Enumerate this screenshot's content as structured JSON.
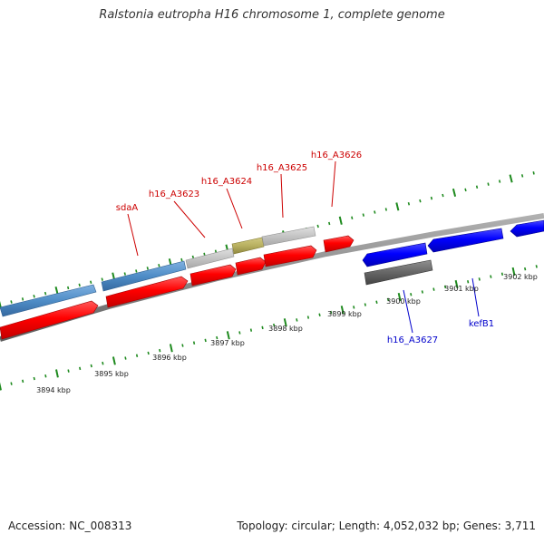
{
  "title": "Ralstonia eutropha H16 chromosome 1, complete genome",
  "footer": {
    "accession": "Accession: NC_008313",
    "summary": "Topology: circular; Length: 4,052,032 bp; Genes: 3,711"
  },
  "colors": {
    "forward_cds": "#ff0000",
    "reverse_cds": "#0000ff",
    "pseudo_or_unknown": "#c8c8c8",
    "highlight_gene": "#b8b060",
    "steel_blue_feature": "#4f8dc7",
    "dark_feature": "#666666",
    "backbone": "#8c8c8c",
    "tick": "#1e8a1e",
    "forward_label": "#cc0000",
    "reverse_label": "#0000cc",
    "kbp_label": "#222222"
  },
  "kbp_labels": [
    "3894 kbp",
    "3895 kbp",
    "3896 kbp",
    "3897 kbp",
    "3898 kbp",
    "3899 kbp",
    "3900 kbp",
    "3901 kbp",
    "3902 kbp"
  ],
  "forward_labels": [
    "sdaA",
    "h16_A3623",
    "h16_A3624",
    "h16_A3625",
    "h16_A3626"
  ],
  "reverse_labels": [
    "h16_A3627",
    "kefB1"
  ]
}
